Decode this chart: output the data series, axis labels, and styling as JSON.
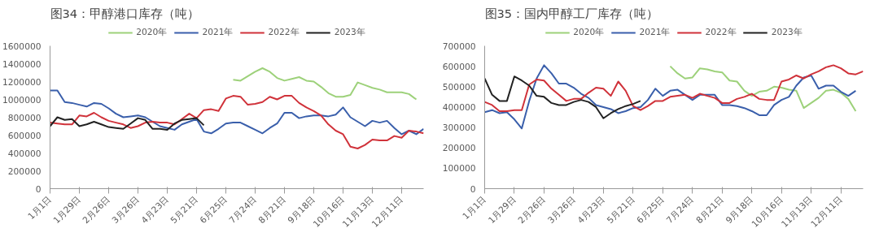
{
  "chart_data": [
    {
      "type": "line",
      "title": "图34：甲醇港口库存（吨）",
      "legend": "top",
      "grid": false,
      "marker": "none",
      "line_style": "solid",
      "categories": [
        "1月1日",
        null,
        null,
        null,
        "1月29日",
        null,
        null,
        null,
        "2月26日",
        null,
        null,
        null,
        "3月26日",
        null,
        null,
        null,
        "4月23日",
        null,
        null,
        null,
        "5月21日",
        null,
        null,
        null,
        "6月25日",
        null,
        null,
        null,
        "7月24日",
        null,
        null,
        null,
        "8月21日",
        null,
        null,
        null,
        "9月18日",
        null,
        null,
        null,
        "10月16日",
        null,
        null,
        null,
        "11月13日",
        null,
        null,
        null,
        "12月11日",
        null,
        null,
        null
      ],
      "ylim": [
        0,
        1600000
      ],
      "yticks": [
        0,
        200000,
        400000,
        600000,
        800000,
        1000000,
        1200000,
        1400000,
        1600000
      ],
      "series": [
        {
          "name": "2020年",
          "color": "#9dd17a",
          "values": [
            null,
            null,
            null,
            null,
            null,
            null,
            null,
            null,
            null,
            null,
            null,
            null,
            null,
            null,
            null,
            null,
            null,
            null,
            null,
            null,
            null,
            null,
            null,
            null,
            null,
            1220000,
            1210000,
            1260000,
            1310000,
            1350000,
            1310000,
            1240000,
            1210000,
            1230000,
            1250000,
            1210000,
            1200000,
            1140000,
            1070000,
            1030000,
            1030000,
            1050000,
            1190000,
            1160000,
            1130000,
            1110000,
            1080000,
            1080000,
            1080000,
            1060000,
            1000000,
            null
          ]
        },
        {
          "name": "2021年",
          "color": "#3a5fab",
          "values": [
            1100000,
            1100000,
            970000,
            960000,
            940000,
            920000,
            960000,
            950000,
            900000,
            840000,
            800000,
            810000,
            820000,
            800000,
            750000,
            700000,
            680000,
            660000,
            720000,
            750000,
            780000,
            640000,
            620000,
            670000,
            730000,
            740000,
            740000,
            700000,
            660000,
            620000,
            680000,
            730000,
            850000,
            850000,
            790000,
            810000,
            820000,
            820000,
            810000,
            830000,
            910000,
            800000,
            750000,
            700000,
            760000,
            740000,
            760000,
            680000,
            610000,
            650000,
            610000,
            670000
          ]
        },
        {
          "name": "2022年",
          "color": "#d0323a",
          "values": [
            740000,
            730000,
            720000,
            720000,
            820000,
            810000,
            850000,
            800000,
            760000,
            740000,
            720000,
            680000,
            700000,
            740000,
            750000,
            740000,
            740000,
            720000,
            780000,
            840000,
            790000,
            880000,
            890000,
            870000,
            1010000,
            1040000,
            1030000,
            940000,
            950000,
            970000,
            1030000,
            1000000,
            1040000,
            1040000,
            960000,
            910000,
            870000,
            820000,
            720000,
            650000,
            610000,
            470000,
            450000,
            490000,
            550000,
            540000,
            540000,
            590000,
            570000,
            650000,
            640000,
            620000
          ]
        },
        {
          "name": "2023年",
          "color": "#222222",
          "values": [
            700000,
            800000,
            770000,
            780000,
            700000,
            720000,
            750000,
            720000,
            690000,
            680000,
            670000,
            730000,
            790000,
            770000,
            670000,
            670000,
            660000,
            730000,
            770000,
            780000,
            790000,
            710000,
            null,
            null,
            null,
            null,
            null,
            null,
            null,
            null,
            null,
            null,
            null,
            null,
            null,
            null,
            null,
            null,
            null,
            null,
            null,
            null,
            null,
            null,
            null,
            null,
            null,
            null,
            null,
            null,
            null,
            null
          ]
        }
      ]
    },
    {
      "type": "line",
      "title": "图35：国内甲醇工厂库存（吨）",
      "legend": "top",
      "grid": false,
      "marker": "none",
      "line_style": "solid",
      "categories": [
        "1月1日",
        null,
        null,
        null,
        "1月29日",
        null,
        null,
        null,
        "2月26日",
        null,
        null,
        null,
        "3月26日",
        null,
        null,
        null,
        "4月23日",
        null,
        null,
        null,
        "5月21日",
        null,
        null,
        null,
        "6月25日",
        null,
        null,
        null,
        "7月24日",
        null,
        null,
        null,
        "8月21日",
        null,
        null,
        null,
        "9月18日",
        null,
        null,
        null,
        "10月16日",
        null,
        null,
        null,
        "11月13日",
        null,
        null,
        null,
        "12月11日",
        null,
        null,
        null
      ],
      "ylim": [
        0,
        700000
      ],
      "yticks": [
        0,
        100000,
        200000,
        300000,
        400000,
        500000,
        600000,
        700000
      ],
      "series": [
        {
          "name": "2020年",
          "color": "#9dd17a",
          "values": [
            null,
            null,
            null,
            null,
            null,
            null,
            null,
            null,
            null,
            null,
            null,
            null,
            null,
            null,
            null,
            null,
            null,
            null,
            null,
            null,
            null,
            null,
            null,
            null,
            null,
            600000,
            565000,
            540000,
            545000,
            590000,
            585000,
            575000,
            570000,
            530000,
            525000,
            480000,
            455000,
            475000,
            480000,
            500000,
            495000,
            485000,
            480000,
            395000,
            420000,
            445000,
            480000,
            485000,
            470000,
            440000,
            380000,
            null
          ]
        },
        {
          "name": "2021年",
          "color": "#3a5fab",
          "values": [
            375000,
            385000,
            370000,
            375000,
            340000,
            295000,
            430000,
            540000,
            605000,
            565000,
            515000,
            515000,
            495000,
            465000,
            445000,
            410000,
            400000,
            390000,
            370000,
            380000,
            395000,
            400000,
            435000,
            490000,
            455000,
            480000,
            485000,
            460000,
            435000,
            460000,
            460000,
            460000,
            410000,
            410000,
            405000,
            395000,
            380000,
            360000,
            360000,
            410000,
            435000,
            450000,
            505000,
            545000,
            555000,
            490000,
            505000,
            505000,
            475000,
            455000,
            480000,
            null
          ]
        },
        {
          "name": "2022年",
          "color": "#d0323a",
          "values": [
            425000,
            410000,
            380000,
            380000,
            385000,
            385000,
            510000,
            535000,
            530000,
            490000,
            460000,
            430000,
            440000,
            440000,
            470000,
            495000,
            490000,
            455000,
            525000,
            480000,
            405000,
            385000,
            405000,
            430000,
            430000,
            450000,
            455000,
            460000,
            445000,
            465000,
            455000,
            445000,
            420000,
            420000,
            440000,
            450000,
            465000,
            440000,
            435000,
            435000,
            525000,
            535000,
            555000,
            540000,
            560000,
            575000,
            595000,
            605000,
            590000,
            565000,
            560000,
            575000
          ]
        },
        {
          "name": "2023年",
          "color": "#222222",
          "values": [
            540000,
            460000,
            430000,
            430000,
            550000,
            530000,
            505000,
            455000,
            450000,
            420000,
            410000,
            410000,
            425000,
            435000,
            425000,
            400000,
            345000,
            370000,
            390000,
            405000,
            415000,
            430000,
            null,
            null,
            null,
            null,
            null,
            null,
            null,
            null,
            null,
            null,
            null,
            null,
            null,
            null,
            null,
            null,
            null,
            null,
            null,
            null,
            null,
            null,
            null,
            null,
            null,
            null,
            null,
            null,
            null,
            null
          ]
        }
      ]
    }
  ]
}
